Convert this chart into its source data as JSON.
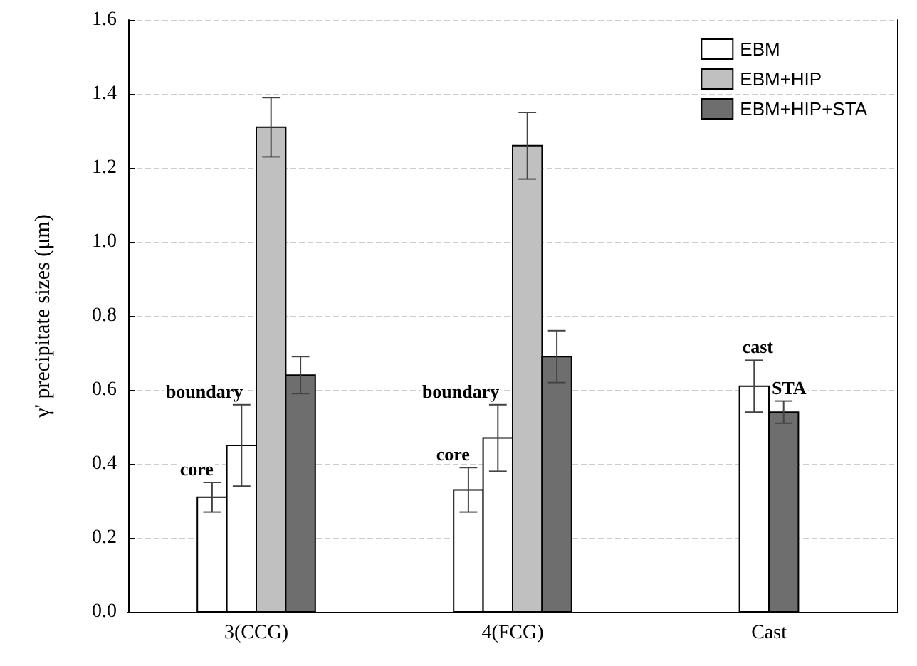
{
  "chart_data": {
    "type": "bar",
    "ylabel": "γ' precipitate sizes (μm)",
    "categories": [
      "3(CCG)",
      "4(FCG)",
      "Cast"
    ],
    "series": [
      {
        "name": "EBM",
        "color": "#ffffff",
        "values": [
          0.31,
          0.33,
          null
        ],
        "errors": [
          0.04,
          0.06,
          null
        ]
      },
      {
        "color": "#ffffff",
        "values": [
          0.45,
          0.47,
          null
        ],
        "errors": [
          0.11,
          0.09,
          null
        ]
      },
      {
        "color": "#ffffff",
        "values": [
          null,
          null,
          0.61
        ],
        "errors": [
          null,
          null,
          0.07
        ]
      },
      {
        "name": "EBM+HIP",
        "color": "#c0c0c0",
        "values": [
          1.31,
          1.26,
          null
        ],
        "errors": [
          0.08,
          0.09,
          null
        ]
      },
      {
        "name": "EBM+HIP+STA",
        "color": "#6e6e6e",
        "values": [
          0.64,
          0.69,
          0.54
        ],
        "errors": [
          0.05,
          0.07,
          0.03
        ]
      }
    ],
    "ylim": [
      0,
      1.6
    ],
    "yticks": [
      {
        "value": 0,
        "label": "0.0"
      },
      0.2,
      0.4,
      0.6,
      0.8,
      {
        "value": 1,
        "label": "1.0"
      },
      1.2,
      1.4,
      1.6
    ],
    "grid": "y",
    "legend": "top right",
    "annotations": [
      {
        "text": "core",
        "x": "3(CCG)",
        "y": 0.35
      },
      {
        "text": "boundary",
        "x": "3(CCG)",
        "y": 0.56
      },
      {
        "text": "core",
        "x": "4(FCG)",
        "y": 0.39
      },
      {
        "text": "boundary",
        "x": "4(FCG)",
        "y": 0.56
      },
      {
        "text": "cast",
        "x": "Cast",
        "y": 0.68
      },
      {
        "text": "STA",
        "x": "Cast",
        "y": 0.57
      }
    ]
  }
}
